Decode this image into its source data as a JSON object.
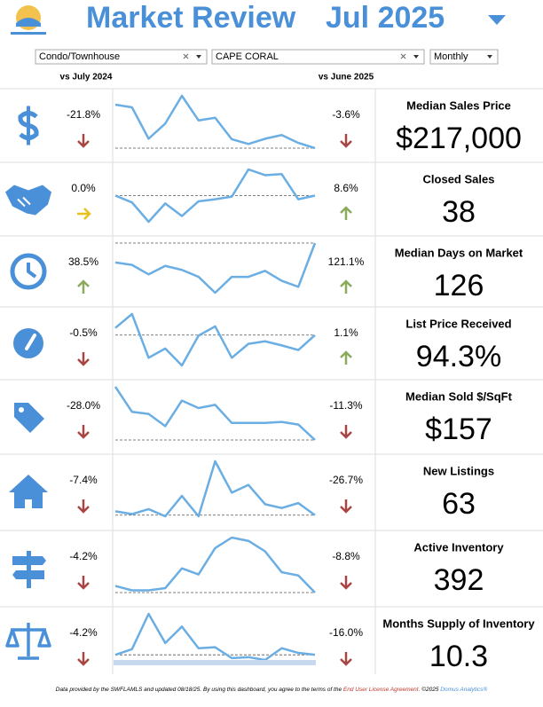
{
  "header": {
    "title": "Market Review",
    "period": "Jul 2025"
  },
  "filters": [
    "Condo/Townhouse",
    "CAPE CORAL",
    "Monthly"
  ],
  "columns": {
    "yoy": "vs July 2024",
    "mom": "vs June 2025"
  },
  "metrics": [
    {
      "label": "Median Sales Price",
      "value": "$217,000",
      "yoy": "-21.8%",
      "yoy_direction": "down",
      "mom": "-3.6%",
      "mom_direction": "down",
      "sparkline": [
        83,
        78,
        18,
        47,
        100,
        53,
        58,
        17,
        8,
        18,
        25,
        10,
        0
      ]
    },
    {
      "label": "Closed Sales",
      "value": "38",
      "yoy": "0.0%",
      "yoy_direction": "flat",
      "mom": "8.6%",
      "mom_direction": "up",
      "sparkline": [
        50,
        37,
        0,
        35,
        11,
        39,
        43,
        48,
        100,
        89,
        91,
        43,
        50
      ]
    },
    {
      "label": "Median Days on Market",
      "value": "126",
      "yoy": "38.5%",
      "yoy_direction": "up",
      "mom": "121.1%",
      "mom_direction": "up",
      "sparkline": [
        61,
        56,
        37,
        54,
        46,
        32,
        0,
        32,
        32,
        44,
        24,
        12,
        100
      ]
    },
    {
      "label": "List Price Received",
      "value": "94.3%",
      "yoy": "-0.5%",
      "yoy_direction": "down",
      "mom": "1.1%",
      "mom_direction": "up",
      "sparkline": [
        73,
        100,
        15,
        33,
        0,
        58,
        76,
        15,
        42,
        47,
        39,
        30,
        59
      ]
    },
    {
      "label": "Median Sold $/SqFt",
      "value": "$157",
      "yoy": "-28.0%",
      "yoy_direction": "down",
      "mom": "-11.3%",
      "mom_direction": "down",
      "sparkline": [
        100,
        53,
        49,
        26,
        74,
        60,
        66,
        32,
        32,
        32,
        34,
        29,
        0
      ]
    },
    {
      "label": "New Listings",
      "value": "63",
      "yoy": "-7.4%",
      "yoy_direction": "down",
      "mom": "-26.7%",
      "mom_direction": "down",
      "sparkline": [
        9,
        4,
        13,
        0,
        37,
        0,
        100,
        43,
        57,
        22,
        15,
        24,
        2
      ]
    },
    {
      "label": "Active Inventory",
      "value": "392",
      "yoy": "-4.2%",
      "yoy_direction": "down",
      "mom": "-8.8%",
      "mom_direction": "down",
      "sparkline": [
        12,
        4,
        4,
        8,
        44,
        33,
        81,
        100,
        94,
        75,
        37,
        31,
        0
      ]
    },
    {
      "label": "Months Supply of Inventory",
      "value": "10.3",
      "yoy": "-4.2%",
      "yoy_direction": "down",
      "mom": "-16.0%",
      "mom_direction": "down",
      "sparkline": [
        13,
        25,
        100,
        38,
        73,
        27,
        29,
        6,
        8,
        2,
        27,
        17,
        13
      ]
    }
  ],
  "footer": {
    "text": "Data provided by the SWFLAMLS and updated 08/18/25.  By using this dashboard, you agree to the terms of the ",
    "link": "End User License Agreement.",
    "copyright": "  ©2025 ",
    "brand": "Domus Analytics®"
  }
}
